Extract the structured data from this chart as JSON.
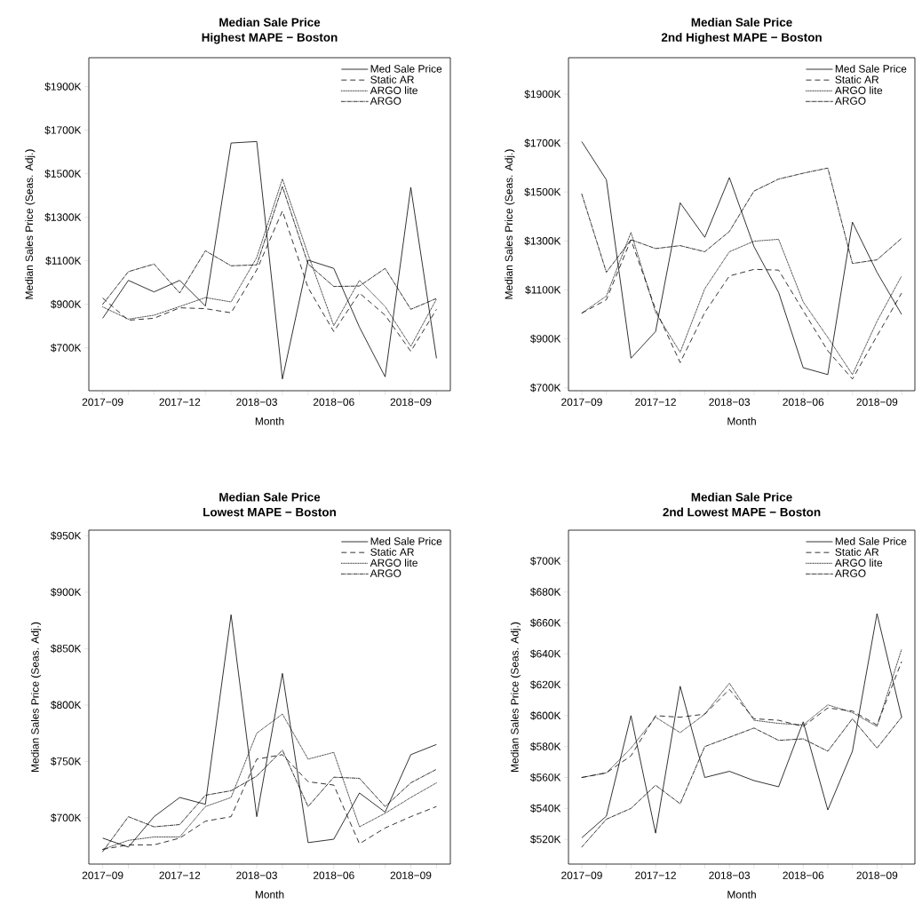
{
  "chart_data": [
    {
      "type": "line",
      "title": "Median Sale Price",
      "subtitle": "Highest MAPE − Boston",
      "xlabel": "Month",
      "ylabel": "Median Sales Price (Seas. Adj.)",
      "categories": [
        "2017−09",
        null,
        null,
        "2017−12",
        null,
        null,
        "2018−03",
        null,
        null,
        "2018−06",
        null,
        null,
        "2018−09",
        null
      ],
      "ylim": [
        503,
        2033
      ],
      "yticks": [
        {
          "value": 700,
          "label": "$700K"
        },
        {
          "value": 900,
          "label": "$900K"
        },
        {
          "value": 1100,
          "label": "$1100K"
        },
        {
          "value": 1300,
          "label": "$1300K"
        },
        {
          "value": 1500,
          "label": "$1500K"
        },
        {
          "value": 1700,
          "label": "$1700K"
        },
        {
          "value": 1900,
          "label": "$1900K"
        }
      ],
      "legend": "top right",
      "series": [
        {
          "name": "Med Sale Price",
          "color": "#000000",
          "line_style": "solid",
          "values": [
            836,
            1010,
            957,
            1010,
            892,
            1641,
            1648,
            557,
            1103,
            1065,
            795,
            567,
            1437,
            652
          ]
        },
        {
          "name": "Static AR",
          "color": "#000000",
          "line_style": "dashed",
          "values": [
            929,
            827,
            836,
            884,
            880,
            861,
            1058,
            1329,
            976,
            775,
            952,
            850,
            684,
            877
          ]
        },
        {
          "name": "ARGO lite",
          "color": "#000000",
          "line_style": "dotted",
          "values": [
            888,
            832,
            850,
            890,
            931,
            911,
            1115,
            1476,
            1129,
            802,
            1010,
            890,
            707,
            924
          ]
        },
        {
          "name": "ARGO",
          "color": "#000000",
          "line_style": "dashdot",
          "values": [
            900,
            1050,
            1085,
            952,
            1146,
            1077,
            1081,
            1441,
            1085,
            982,
            984,
            1065,
            877,
            927
          ]
        }
      ]
    },
    {
      "type": "line",
      "title": "Median Sale Price",
      "subtitle": "2nd Highest MAPE − Boston",
      "xlabel": "Month",
      "ylabel": "Median Sales Price (Seas. Adj.)",
      "categories": [
        "2017−09",
        null,
        null,
        "2017−12",
        null,
        null,
        "2018−03",
        null,
        null,
        "2018−06",
        null,
        null,
        "2018−09",
        null
      ],
      "ylim": [
        688,
        2049
      ],
      "yticks": [
        {
          "value": 700,
          "label": "$700K"
        },
        {
          "value": 900,
          "label": "$900K"
        },
        {
          "value": 1100,
          "label": "$1100K"
        },
        {
          "value": 1300,
          "label": "$1300K"
        },
        {
          "value": 1500,
          "label": "$1500K"
        },
        {
          "value": 1700,
          "label": "$1700K"
        },
        {
          "value": 1900,
          "label": "$1900K"
        }
      ],
      "legend": "top right",
      "series": [
        {
          "name": "Med Sale Price",
          "color": "#000000",
          "line_style": "solid",
          "values": [
            1706,
            1550,
            821,
            930,
            1456,
            1315,
            1559,
            1277,
            1090,
            782,
            754,
            1377,
            1172,
            1000
          ]
        },
        {
          "name": "Static AR",
          "color": "#000000",
          "line_style": "dashed",
          "values": [
            1005,
            1060,
            1305,
            1021,
            803,
            1008,
            1157,
            1184,
            1181,
            1015,
            851,
            736,
            912,
            1087
          ]
        },
        {
          "name": "ARGO lite",
          "color": "#000000",
          "line_style": "dotted",
          "values": [
            1005,
            1075,
            1335,
            1008,
            845,
            1105,
            1256,
            1299,
            1307,
            1051,
            906,
            754,
            972,
            1157
          ]
        },
        {
          "name": "ARGO",
          "color": "#000000",
          "line_style": "dashdot",
          "values": [
            1492,
            1172,
            1305,
            1269,
            1281,
            1256,
            1339,
            1504,
            1553,
            1577,
            1598,
            1208,
            1223,
            1311
          ]
        }
      ]
    },
    {
      "type": "line",
      "title": "Median Sale Price",
      "subtitle": "Lowest MAPE − Boston",
      "xlabel": "Month",
      "ylabel": "Median Sales Price (Seas. Adj.)",
      "categories": [
        "2017−09",
        null,
        null,
        "2017−12",
        null,
        null,
        "2018−03",
        null,
        null,
        "2018−06",
        null,
        null,
        "2018−09",
        null
      ],
      "ylim": [
        659,
        955
      ],
      "yticks": [
        {
          "value": 700,
          "label": "$700K"
        },
        {
          "value": 750,
          "label": "$750K"
        },
        {
          "value": 800,
          "label": "$800K"
        },
        {
          "value": 850,
          "label": "$850K"
        },
        {
          "value": 900,
          "label": "$900K"
        },
        {
          "value": 950,
          "label": "$950K"
        }
      ],
      "legend": "top right",
      "series": [
        {
          "name": "Med Sale Price",
          "color": "#000000",
          "line_style": "solid",
          "values": [
            682,
            674,
            701,
            718,
            712,
            880,
            701,
            828,
            678,
            681,
            722,
            705,
            756,
            765
          ]
        },
        {
          "name": "Static AR",
          "color": "#000000",
          "line_style": "dashed",
          "values": [
            672,
            676,
            676,
            682,
            697,
            701,
            752,
            756,
            732,
            729,
            677,
            691,
            701,
            710
          ]
        },
        {
          "name": "ARGO lite",
          "color": "#000000",
          "line_style": "dotted",
          "values": [
            672,
            680,
            683,
            683,
            710,
            718,
            775,
            792,
            752,
            758,
            692,
            704,
            718,
            731
          ]
        },
        {
          "name": "ARGO",
          "color": "#000000",
          "line_style": "dashdot",
          "values": [
            670,
            701,
            692,
            694,
            720,
            724,
            737,
            760,
            710,
            736,
            735,
            710,
            731,
            743
          ]
        }
      ]
    },
    {
      "type": "line",
      "title": "Median Sale Price",
      "subtitle": "2nd Lowest MAPE − Boston",
      "xlabel": "Month",
      "ylabel": "Median Sales Price (Seas. Adj.)",
      "categories": [
        "2017−09",
        null,
        null,
        "2017−12",
        null,
        null,
        "2018−03",
        null,
        null,
        "2018−06",
        null,
        null,
        "2018−09",
        null
      ],
      "ylim": [
        504,
        720
      ],
      "yticks": [
        {
          "value": 520,
          "label": "$520K"
        },
        {
          "value": 540,
          "label": "$540K"
        },
        {
          "value": 560,
          "label": "$560K"
        },
        {
          "value": 580,
          "label": "$580K"
        },
        {
          "value": 600,
          "label": "$600K"
        },
        {
          "value": 620,
          "label": "$620K"
        },
        {
          "value": 640,
          "label": "$640K"
        },
        {
          "value": 660,
          "label": "$660K"
        },
        {
          "value": 680,
          "label": "$680K"
        },
        {
          "value": 700,
          "label": "$700K"
        }
      ],
      "legend": "top right",
      "series": [
        {
          "name": "Med Sale Price",
          "color": "#000000",
          "line_style": "solid",
          "values": [
            521,
            535,
            600,
            524,
            619,
            560,
            564,
            558,
            554,
            596,
            539,
            577,
            666,
            599
          ]
        },
        {
          "name": "Static AR",
          "color": "#000000",
          "line_style": "dashed",
          "values": [
            560,
            563,
            574,
            600,
            599,
            601,
            617,
            598,
            597,
            593,
            605,
            603,
            594,
            635
          ]
        },
        {
          "name": "ARGO lite",
          "color": "#000000",
          "line_style": "dotted",
          "values": [
            560,
            563,
            579,
            599,
            589,
            601,
            621,
            597,
            595,
            594,
            607,
            602,
            593,
            643
          ]
        },
        {
          "name": "ARGO",
          "color": "#000000",
          "line_style": "dashdot",
          "values": [
            515,
            533,
            540,
            555,
            543,
            580,
            586,
            592,
            584,
            585,
            577,
            598,
            579,
            599
          ]
        }
      ]
    }
  ]
}
